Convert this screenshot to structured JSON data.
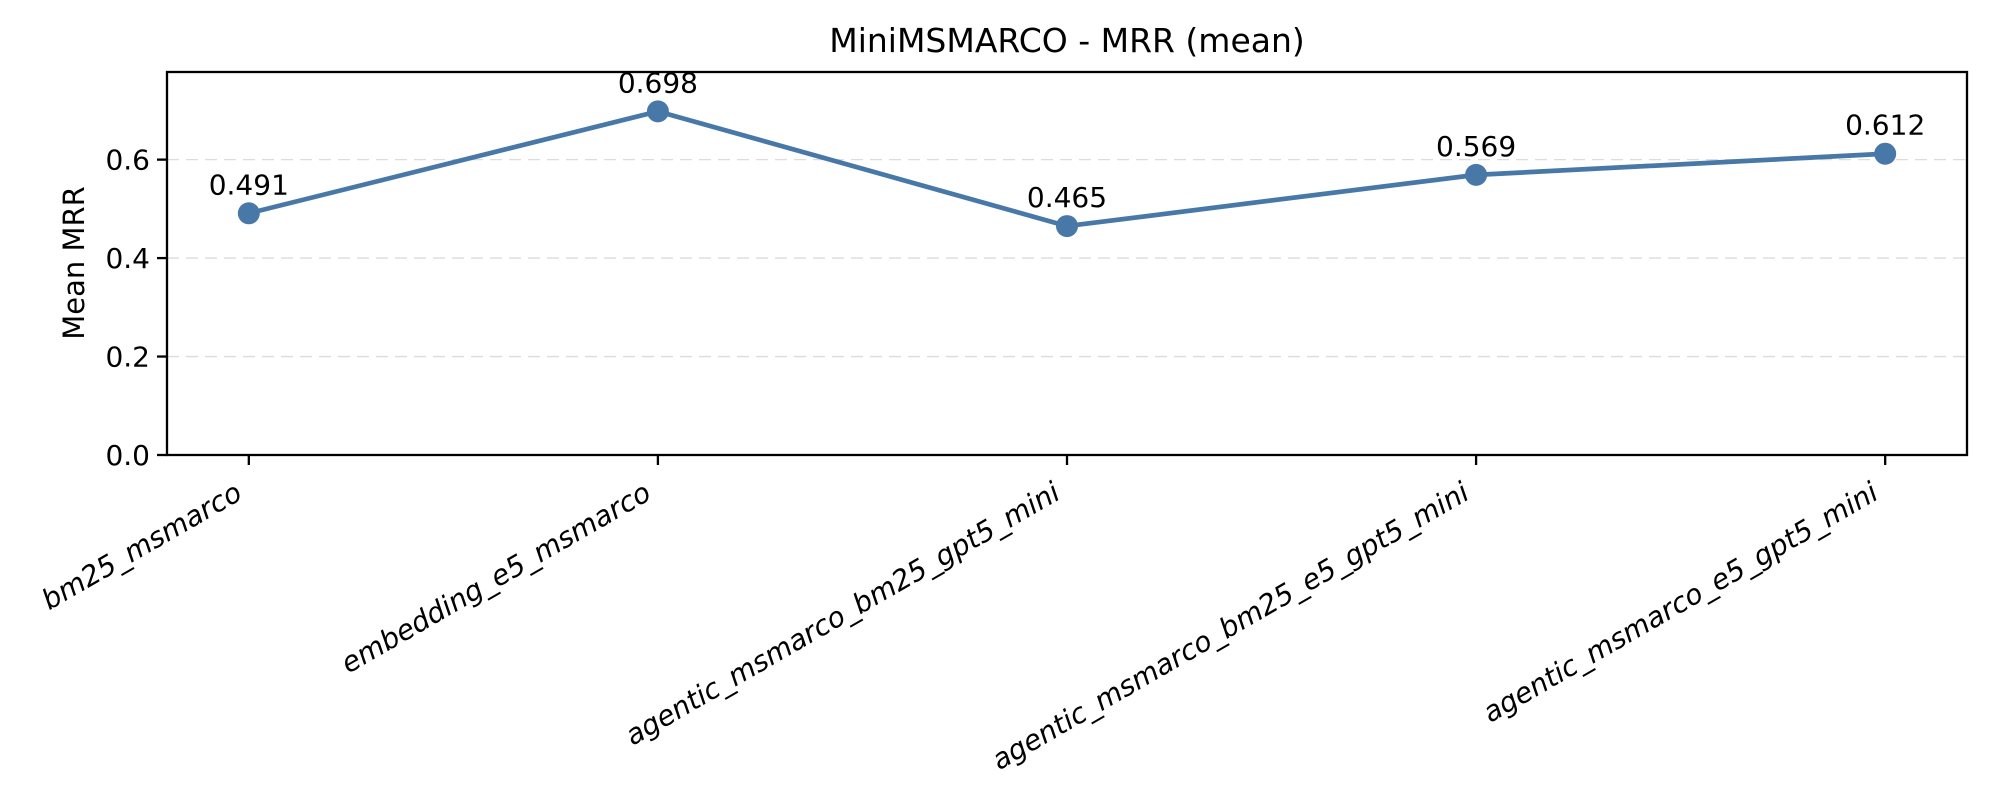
{
  "chart_data": {
    "type": "line",
    "title": "MiniMSMARCO - MRR (mean)",
    "ylabel": "Mean MRR",
    "xlabel": "",
    "categories": [
      "bm25_msmarco",
      "embedding_e5_msmarco",
      "agentic_msmarco_bm25_gpt5_mini",
      "agentic_msmarco_bm25_e5_gpt5_mini",
      "agentic_msmarco_e5_gpt5_mini"
    ],
    "series": [
      {
        "name": "Mean MRR",
        "values": [
          0.491,
          0.698,
          0.465,
          0.569,
          0.612
        ]
      }
    ],
    "point_labels": [
      "0.491",
      "0.698",
      "0.465",
      "0.569",
      "0.612"
    ],
    "yticks": [
      {
        "value": 0.0,
        "label": "0.0"
      },
      {
        "value": 0.2,
        "label": "0.2"
      },
      {
        "value": 0.4,
        "label": "0.4"
      },
      {
        "value": 0.6,
        "label": "0.6"
      }
    ],
    "ylim": [
      0,
      0.778
    ],
    "grid": {
      "axis": "y",
      "style": "dashed",
      "color": "#dcdcdc"
    },
    "legend": "none",
    "x_tick_label_style": {
      "italic": true,
      "rotation_deg": 30
    },
    "colors": {
      "line": "#4878a8",
      "marker": "#4878a8",
      "axis": "#000000",
      "text": "#000000",
      "background": "#ffffff"
    }
  }
}
